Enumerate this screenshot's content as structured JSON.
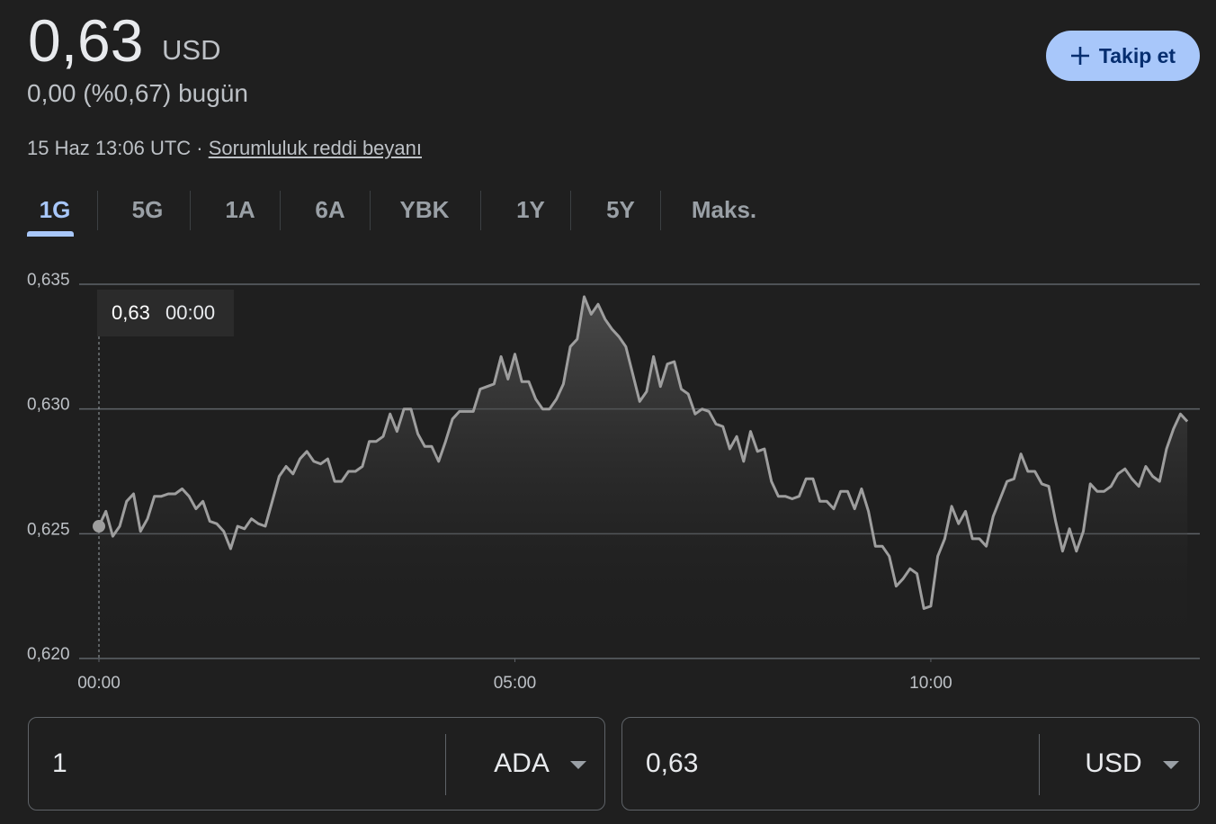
{
  "header": {
    "price": "0,63",
    "currency": "USD",
    "change": "0,00 (%0,67) bugün",
    "timestamp": "15 Haz 13:06 UTC · ",
    "disclaimer": "Sorumluluk reddi beyanı",
    "follow": "Takip et"
  },
  "tabs": {
    "items": [
      "1G",
      "5G",
      "1A",
      "6A",
      "YBK",
      "1Y",
      "5Y",
      "Maks."
    ],
    "selected": 0
  },
  "chart_data": {
    "type": "line",
    "color": "#9e9e9e",
    "x": [
      0,
      5,
      10,
      15,
      20,
      25,
      30,
      35,
      40,
      45,
      50,
      55,
      60,
      65,
      70,
      75,
      80,
      85,
      90,
      95,
      100,
      105,
      110,
      115,
      120,
      125,
      130,
      135,
      140,
      145,
      150,
      155,
      160,
      165,
      170,
      175,
      180,
      185,
      190,
      195,
      200,
      205,
      210,
      215,
      220,
      225,
      230,
      235,
      240,
      245,
      250,
      255,
      260,
      265,
      270,
      275,
      280,
      285,
      290,
      295,
      300,
      305,
      310,
      315,
      320,
      325,
      330,
      335,
      340,
      345,
      350,
      355,
      360,
      365,
      370,
      375,
      380,
      385,
      390,
      395,
      400,
      405,
      410,
      415,
      420,
      425,
      430,
      435,
      440,
      445,
      450,
      455,
      460,
      465,
      470,
      475,
      480,
      485,
      490,
      495,
      500,
      505,
      510,
      515,
      520,
      525,
      530,
      535,
      540,
      545,
      550,
      555,
      560,
      565,
      570,
      575,
      580,
      585,
      590,
      595,
      600,
      605,
      610,
      615,
      620,
      625,
      630,
      635,
      640,
      645,
      650,
      655,
      660,
      665,
      670,
      675,
      680,
      685,
      690,
      695,
      700,
      705,
      710,
      715,
      720,
      725,
      730,
      735,
      740,
      745,
      750,
      755,
      760,
      765,
      770,
      775,
      780,
      785
    ],
    "values": [
      0.6253,
      0.6259,
      0.6249,
      0.6253,
      0.6263,
      0.6266,
      0.6251,
      0.6256,
      0.6265,
      0.6265,
      0.6266,
      0.6266,
      0.6268,
      0.6265,
      0.626,
      0.6263,
      0.6255,
      0.6254,
      0.6251,
      0.6244,
      0.6253,
      0.6252,
      0.6256,
      0.6254,
      0.6253,
      0.6263,
      0.6273,
      0.6277,
      0.6274,
      0.628,
      0.6283,
      0.6279,
      0.6278,
      0.628,
      0.6271,
      0.6271,
      0.6275,
      0.6275,
      0.6277,
      0.6287,
      0.6287,
      0.6289,
      0.6298,
      0.6291,
      0.63,
      0.63,
      0.629,
      0.6285,
      0.6285,
      0.6279,
      0.6287,
      0.6296,
      0.6299,
      0.6299,
      0.6299,
      0.6308,
      0.6309,
      0.631,
      0.6321,
      0.6312,
      0.6322,
      0.6311,
      0.6311,
      0.6304,
      0.63,
      0.63,
      0.6304,
      0.631,
      0.6325,
      0.6328,
      0.6345,
      0.6338,
      0.6342,
      0.6336,
      0.6332,
      0.6329,
      0.6325,
      0.6314,
      0.6303,
      0.6307,
      0.6321,
      0.6309,
      0.6318,
      0.6319,
      0.6308,
      0.6306,
      0.6298,
      0.63,
      0.6299,
      0.6294,
      0.6293,
      0.6284,
      0.6289,
      0.6279,
      0.6291,
      0.6283,
      0.6284,
      0.6271,
      0.6265,
      0.6265,
      0.6264,
      0.6265,
      0.6272,
      0.6272,
      0.6263,
      0.6263,
      0.626,
      0.6267,
      0.6267,
      0.626,
      0.6268,
      0.6259,
      0.6245,
      0.6245,
      0.6241,
      0.6229,
      0.6232,
      0.6236,
      0.6234,
      0.622,
      0.6221,
      0.6241,
      0.6248,
      0.6261,
      0.6254,
      0.6259,
      0.6248,
      0.6248,
      0.6245,
      0.6257,
      0.6264,
      0.6271,
      0.6272,
      0.6282,
      0.6275,
      0.6275,
      0.627,
      0.6269,
      0.6255,
      0.6243,
      0.6252,
      0.6243,
      0.6251,
      0.627,
      0.6267,
      0.6267,
      0.6269,
      0.6274,
      0.6276,
      0.6272,
      0.6269,
      0.6277,
      0.6273,
      0.6271,
      0.6284,
      0.6292,
      0.6298,
      0.6295
    ],
    "xlim": [
      0,
      794
    ],
    "xticks": [
      {
        "value": 0,
        "label": "00:00"
      },
      {
        "value": 300,
        "label": "05:00"
      },
      {
        "value": 600,
        "label": "10:00"
      }
    ],
    "ylim": [
      0.62,
      0.635
    ],
    "yticks": [
      {
        "value": 0.62,
        "label": "0,620"
      },
      {
        "value": 0.625,
        "label": "0,625"
      },
      {
        "value": 0.63,
        "label": "0,630"
      },
      {
        "value": 0.635,
        "label": "0,635"
      }
    ],
    "grid": true,
    "tooltip": {
      "price": "0,63",
      "time": "00:00"
    }
  },
  "converter": {
    "from": {
      "amount": "1",
      "unit": "ADA"
    },
    "to": {
      "amount": "0,63",
      "unit": "USD"
    }
  }
}
